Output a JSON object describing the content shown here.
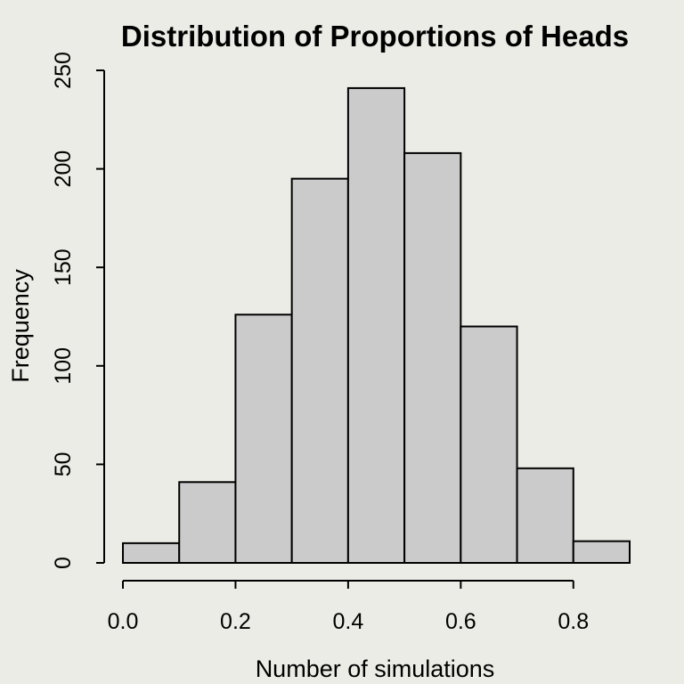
{
  "chart_data": {
    "type": "bar",
    "title": "Distribution of Proportions of Heads",
    "xlabel": "Number of simulations",
    "ylabel": "Frequency",
    "bins": [
      {
        "from": 0.0,
        "to": 0.1,
        "value": 10
      },
      {
        "from": 0.1,
        "to": 0.2,
        "value": 41
      },
      {
        "from": 0.2,
        "to": 0.3,
        "value": 126
      },
      {
        "from": 0.3,
        "to": 0.4,
        "value": 195
      },
      {
        "from": 0.4,
        "to": 0.5,
        "value": 241
      },
      {
        "from": 0.5,
        "to": 0.6,
        "value": 208
      },
      {
        "from": 0.6,
        "to": 0.7,
        "value": 120
      },
      {
        "from": 0.7,
        "to": 0.8,
        "value": 48
      },
      {
        "from": 0.8,
        "to": 0.9,
        "value": 11
      }
    ],
    "xticks": [
      "0.0",
      "0.2",
      "0.4",
      "0.6",
      "0.8"
    ],
    "xtick_values": [
      0.0,
      0.2,
      0.4,
      0.6,
      0.8
    ],
    "yticks": [
      "0",
      "50",
      "100",
      "150",
      "200",
      "250"
    ],
    "ytick_values": [
      0,
      50,
      100,
      150,
      200,
      250
    ],
    "xlim": [
      0.0,
      0.9
    ],
    "ylim": [
      0,
      250
    ],
    "grid": false,
    "colors": {
      "bar_fill": "#cbcbcb",
      "bar_stroke": "#000000",
      "background": "#ecece6"
    }
  }
}
